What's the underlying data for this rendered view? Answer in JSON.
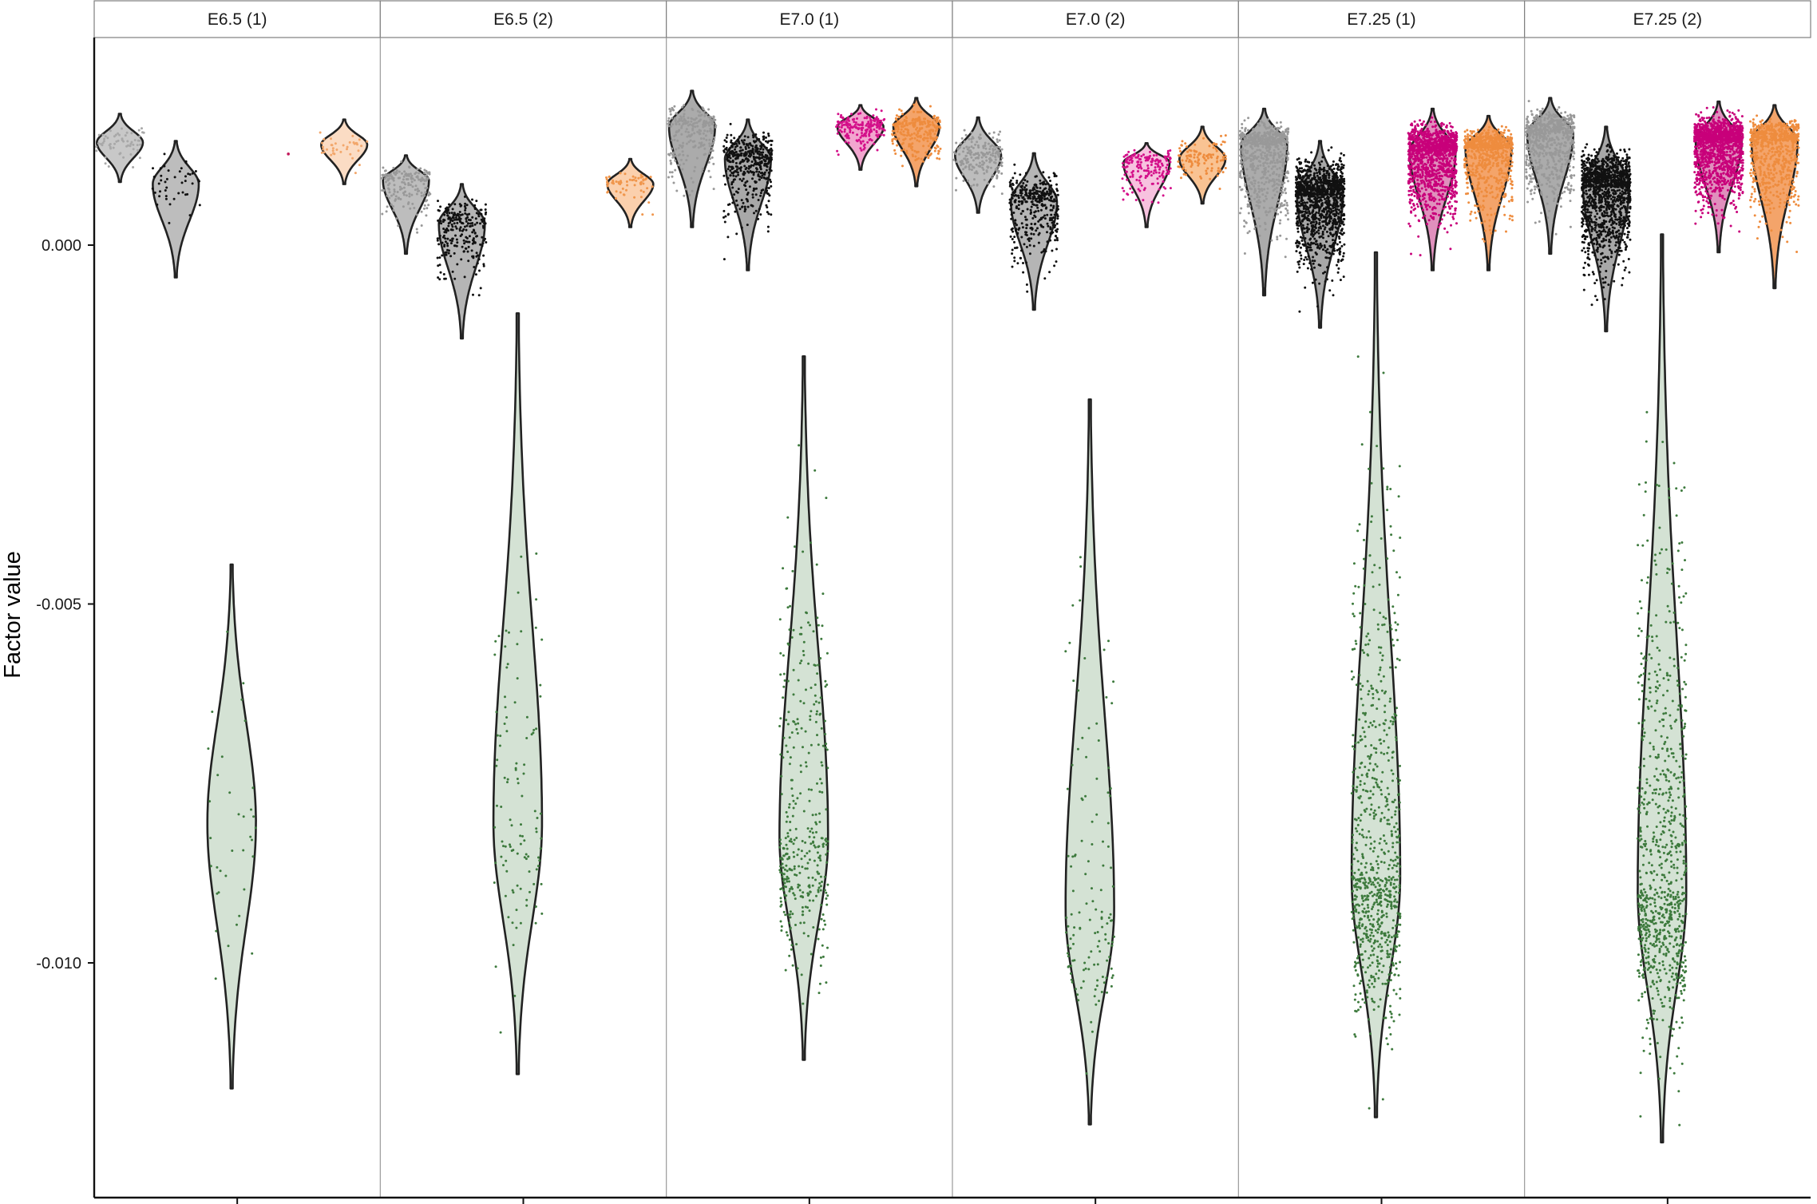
{
  "chart_data": {
    "type": "violin",
    "ylabel": "Factor value",
    "xlabel": "",
    "ylim": [
      -0.01275,
      0.00295
    ],
    "yticks": [
      {
        "value": 0.0,
        "label": "0.000"
      },
      {
        "value": -0.005,
        "label": "-0.005"
      },
      {
        "value": -0.01,
        "label": "-0.010"
      }
    ],
    "groups_per_panel": 5,
    "grid": false,
    "legend": "none",
    "panels": [
      {
        "label": "E6.5 (1)",
        "violins": [
          {
            "group": 1,
            "color": "#c8c8c8",
            "points": "#a8a8a8",
            "min": 0.00088,
            "max": 0.00183,
            "median": 0.00143,
            "n": 60
          },
          {
            "group": 2,
            "color": "#bdbdbd",
            "points": "#111111",
            "min": -0.00045,
            "max": 0.00145,
            "median": 0.00085,
            "n": 45
          },
          {
            "group": 3,
            "color": "#d4e2d4",
            "points": "#3d7a3d",
            "min": -0.01175,
            "max": -0.00445,
            "median": -0.00805,
            "n": 35
          },
          {
            "group": 5,
            "color": "#fbdcc4",
            "points": "#f2a76c",
            "min": 0.00085,
            "max": 0.00175,
            "median": 0.0014,
            "n": 40
          }
        ],
        "extra_points": [
          {
            "group": 4,
            "value": 0.00127,
            "color": "#c2185b"
          }
        ]
      },
      {
        "label": "E6.5 (2)",
        "violins": [
          {
            "group": 1,
            "color": "#bdbdbd",
            "points": "#999999",
            "min": -0.00012,
            "max": 0.00125,
            "median": 0.0009,
            "n": 180
          },
          {
            "group": 2,
            "color": "#b5b5b5",
            "points": "#111111",
            "min": -0.0013,
            "max": 0.00085,
            "median": 0.0003,
            "n": 260
          },
          {
            "group": 3,
            "color": "#d4e2d4",
            "points": "#3d7a3d",
            "min": -0.01155,
            "max": -0.00095,
            "median": -0.00805,
            "n": 110
          },
          {
            "group": 5,
            "color": "#fbd0ad",
            "points": "#f0964c",
            "min": 0.00025,
            "max": 0.0012,
            "median": 0.00085,
            "n": 60
          }
        ]
      },
      {
        "label": "E7.0 (1)",
        "violins": [
          {
            "group": 1,
            "color": "#ababab",
            "points": "#999999",
            "min": 0.00025,
            "max": 0.00215,
            "median": 0.00165,
            "n": 250
          },
          {
            "group": 2,
            "color": "#a8a8a8",
            "points": "#111111",
            "min": -0.00035,
            "max": 0.00175,
            "median": 0.0012,
            "n": 450
          },
          {
            "group": 3,
            "color": "#d4e2d4",
            "points": "#3d7a3d",
            "min": -0.01135,
            "max": -0.00155,
            "median": -0.00825,
            "n": 380
          },
          {
            "group": 4,
            "color": "#f2a6cf",
            "points": "#d4108a",
            "min": 0.00105,
            "max": 0.00195,
            "median": 0.00165,
            "n": 200
          },
          {
            "group": 5,
            "color": "#f4a46a",
            "points": "#ee8c3e",
            "min": 0.00082,
            "max": 0.00205,
            "median": 0.00165,
            "n": 250
          }
        ]
      },
      {
        "label": "E7.0 (2)",
        "violins": [
          {
            "group": 1,
            "color": "#bdbdbd",
            "points": "#999999",
            "min": 0.00045,
            "max": 0.00178,
            "median": 0.00125,
            "n": 200
          },
          {
            "group": 2,
            "color": "#b5b5b5",
            "points": "#111111",
            "min": -0.0009,
            "max": 0.00128,
            "median": 0.0006,
            "n": 380
          },
          {
            "group": 3,
            "color": "#d4e2d4",
            "points": "#3d7a3d",
            "min": -0.01225,
            "max": -0.00215,
            "median": -0.00925,
            "n": 130
          },
          {
            "group": 4,
            "color": "#f7c2df",
            "points": "#d4108a",
            "min": 0.00025,
            "max": 0.00142,
            "median": 0.00115,
            "n": 180
          },
          {
            "group": 5,
            "color": "#f9c393",
            "points": "#ee8c3e",
            "min": 0.00058,
            "max": 0.00165,
            "median": 0.0012,
            "n": 120
          }
        ]
      },
      {
        "label": "E7.25 (1)",
        "violins": [
          {
            "group": 1,
            "color": "#ababab",
            "points": "#999999",
            "min": -0.0007,
            "max": 0.0019,
            "median": 0.0014,
            "n": 700
          },
          {
            "group": 2,
            "color": "#a8a8a8",
            "points": "#111111",
            "min": -0.00115,
            "max": 0.00145,
            "median": 0.0007,
            "n": 1200
          },
          {
            "group": 3,
            "color": "#d4e2d4",
            "points": "#3d7a3d",
            "min": -0.01215,
            "max": -0.0001,
            "median": -0.0088,
            "n": 800
          },
          {
            "group": 4,
            "color": "#e090bd",
            "points": "#c8007a",
            "min": -0.00035,
            "max": 0.0019,
            "median": 0.0013,
            "n": 1300
          },
          {
            "group": 5,
            "color": "#f4a46a",
            "points": "#ee8c3e",
            "min": -0.00035,
            "max": 0.0018,
            "median": 0.00135,
            "n": 700
          }
        ]
      },
      {
        "label": "E7.25 (2)",
        "violins": [
          {
            "group": 1,
            "color": "#ababab",
            "points": "#999999",
            "min": -0.00012,
            "max": 0.00205,
            "median": 0.00155,
            "n": 700
          },
          {
            "group": 2,
            "color": "#a8a8a8",
            "points": "#111111",
            "min": -0.0012,
            "max": 0.00165,
            "median": 0.0008,
            "n": 1300
          },
          {
            "group": 3,
            "color": "#d4e2d4",
            "points": "#3d7a3d",
            "min": -0.0125,
            "max": 0.00015,
            "median": -0.009,
            "n": 850
          },
          {
            "group": 4,
            "color": "#e090bd",
            "points": "#c8007a",
            "min": -0.0001,
            "max": 0.002,
            "median": 0.00145,
            "n": 1400
          },
          {
            "group": 5,
            "color": "#f4a46a",
            "points": "#ee8c3e",
            "min": -0.0006,
            "max": 0.00195,
            "median": 0.00145,
            "n": 700
          }
        ]
      }
    ]
  }
}
